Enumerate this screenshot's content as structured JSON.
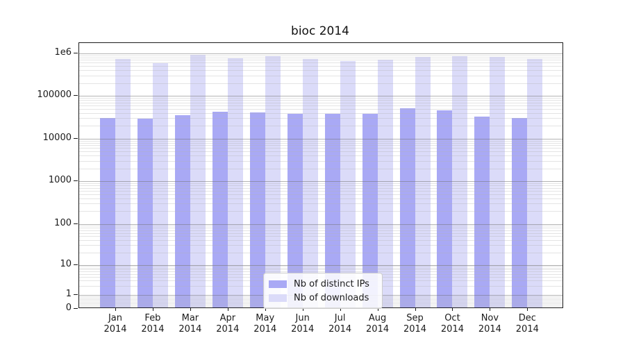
{
  "title": "bioc 2014",
  "legend": {
    "items": [
      {
        "label": "Nb of distinct IPs",
        "color": "#a9a9f5"
      },
      {
        "label": "Nb of downloads",
        "color": "#dbdbf9"
      }
    ]
  },
  "colors": {
    "bar_distinct_ips": "#a9a9f5",
    "bar_downloads": "#dbdbf9",
    "grid_major": "#b4b4b4",
    "grid_minor": "#e4e4e4",
    "spine": "#1a1a1a",
    "text": "#1a1a1a"
  },
  "chart_data": {
    "type": "bar",
    "title": "bioc 2014",
    "categories": [
      "Jan",
      "Feb",
      "Mar",
      "Apr",
      "May",
      "Jun",
      "Jul",
      "Aug",
      "Sep",
      "Oct",
      "Nov",
      "Dec"
    ],
    "category_year": "2014",
    "series": [
      {
        "name": "Nb of distinct IPs",
        "color": "#a9a9f5",
        "values": [
          31000,
          29400,
          35500,
          42800,
          41000,
          38200,
          37600,
          38800,
          51000,
          45600,
          32600,
          30200
        ]
      },
      {
        "name": "Nb of downloads",
        "color": "#dbdbf9",
        "values": [
          736000,
          588000,
          920000,
          770000,
          845000,
          736000,
          667000,
          709000,
          814000,
          845000,
          814000,
          736000
        ]
      }
    ],
    "yscale": "log (symlog with zero baseline)",
    "ylim": [
      0,
      1700000
    ],
    "ytick_labels": [
      "1e6",
      "100000",
      "10000",
      "1000",
      "100",
      "10",
      "1",
      "0"
    ],
    "ytick_values": [
      1000000,
      100000,
      10000,
      1000,
      100,
      10,
      1,
      0
    ],
    "xlabel": "",
    "ylabel": "",
    "grid": "horizontal major + minor (log decades), drawn over bars",
    "legend_position": "lower center inside axes"
  }
}
